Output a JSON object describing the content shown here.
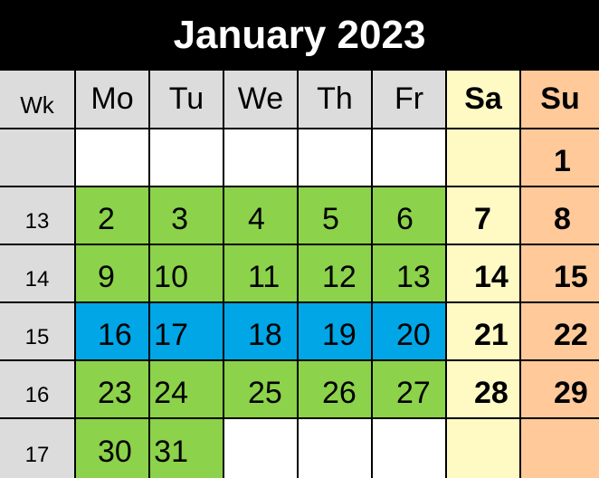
{
  "title": "January 2023",
  "headers": [
    "Wk",
    "Mo",
    "Tu",
    "We",
    "Th",
    "Fr",
    "Sa",
    "Su"
  ],
  "colors": {
    "title_bg": "#000000",
    "title_fg": "#ffffff",
    "grid": "#000000",
    "header_bg": "#dcdcdc",
    "week_bg": "#dcdcdc",
    "weekday_empty": "#ffffff",
    "green": "#8cd24b",
    "blue": "#00a6e6",
    "saturday": "#fff9c4",
    "sunday": "#ffc99a"
  },
  "weeks": [
    {
      "wk": "",
      "days": [
        {
          "n": "",
          "c": "weekday_empty"
        },
        {
          "n": "",
          "c": "weekday_empty"
        },
        {
          "n": "",
          "c": "weekday_empty"
        },
        {
          "n": "",
          "c": "weekday_empty"
        },
        {
          "n": "",
          "c": "weekday_empty"
        },
        {
          "n": "",
          "c": "saturday"
        },
        {
          "n": "1",
          "c": "sunday"
        }
      ]
    },
    {
      "wk": "13",
      "days": [
        {
          "n": "2",
          "c": "green"
        },
        {
          "n": "3",
          "c": "green"
        },
        {
          "n": "4",
          "c": "green"
        },
        {
          "n": "5",
          "c": "green"
        },
        {
          "n": "6",
          "c": "green"
        },
        {
          "n": "7",
          "c": "saturday"
        },
        {
          "n": "8",
          "c": "sunday"
        }
      ]
    },
    {
      "wk": "14",
      "days": [
        {
          "n": "9",
          "c": "green"
        },
        {
          "n": "10",
          "c": "green"
        },
        {
          "n": "11",
          "c": "green"
        },
        {
          "n": "12",
          "c": "green"
        },
        {
          "n": "13",
          "c": "green"
        },
        {
          "n": "14",
          "c": "saturday"
        },
        {
          "n": "15",
          "c": "sunday"
        }
      ]
    },
    {
      "wk": "15",
      "days": [
        {
          "n": "16",
          "c": "blue"
        },
        {
          "n": "17",
          "c": "blue"
        },
        {
          "n": "18",
          "c": "blue"
        },
        {
          "n": "19",
          "c": "blue"
        },
        {
          "n": "20",
          "c": "blue"
        },
        {
          "n": "21",
          "c": "saturday"
        },
        {
          "n": "22",
          "c": "sunday"
        }
      ]
    },
    {
      "wk": "16",
      "days": [
        {
          "n": "23",
          "c": "green"
        },
        {
          "n": "24",
          "c": "green"
        },
        {
          "n": "25",
          "c": "green"
        },
        {
          "n": "26",
          "c": "green"
        },
        {
          "n": "27",
          "c": "green"
        },
        {
          "n": "28",
          "c": "saturday"
        },
        {
          "n": "29",
          "c": "sunday"
        }
      ]
    },
    {
      "wk": "17",
      "days": [
        {
          "n": "30",
          "c": "green"
        },
        {
          "n": "31",
          "c": "green"
        },
        {
          "n": "",
          "c": "weekday_empty"
        },
        {
          "n": "",
          "c": "weekday_empty"
        },
        {
          "n": "",
          "c": "weekday_empty"
        },
        {
          "n": "",
          "c": "saturday"
        },
        {
          "n": "",
          "c": "sunday"
        }
      ]
    }
  ]
}
